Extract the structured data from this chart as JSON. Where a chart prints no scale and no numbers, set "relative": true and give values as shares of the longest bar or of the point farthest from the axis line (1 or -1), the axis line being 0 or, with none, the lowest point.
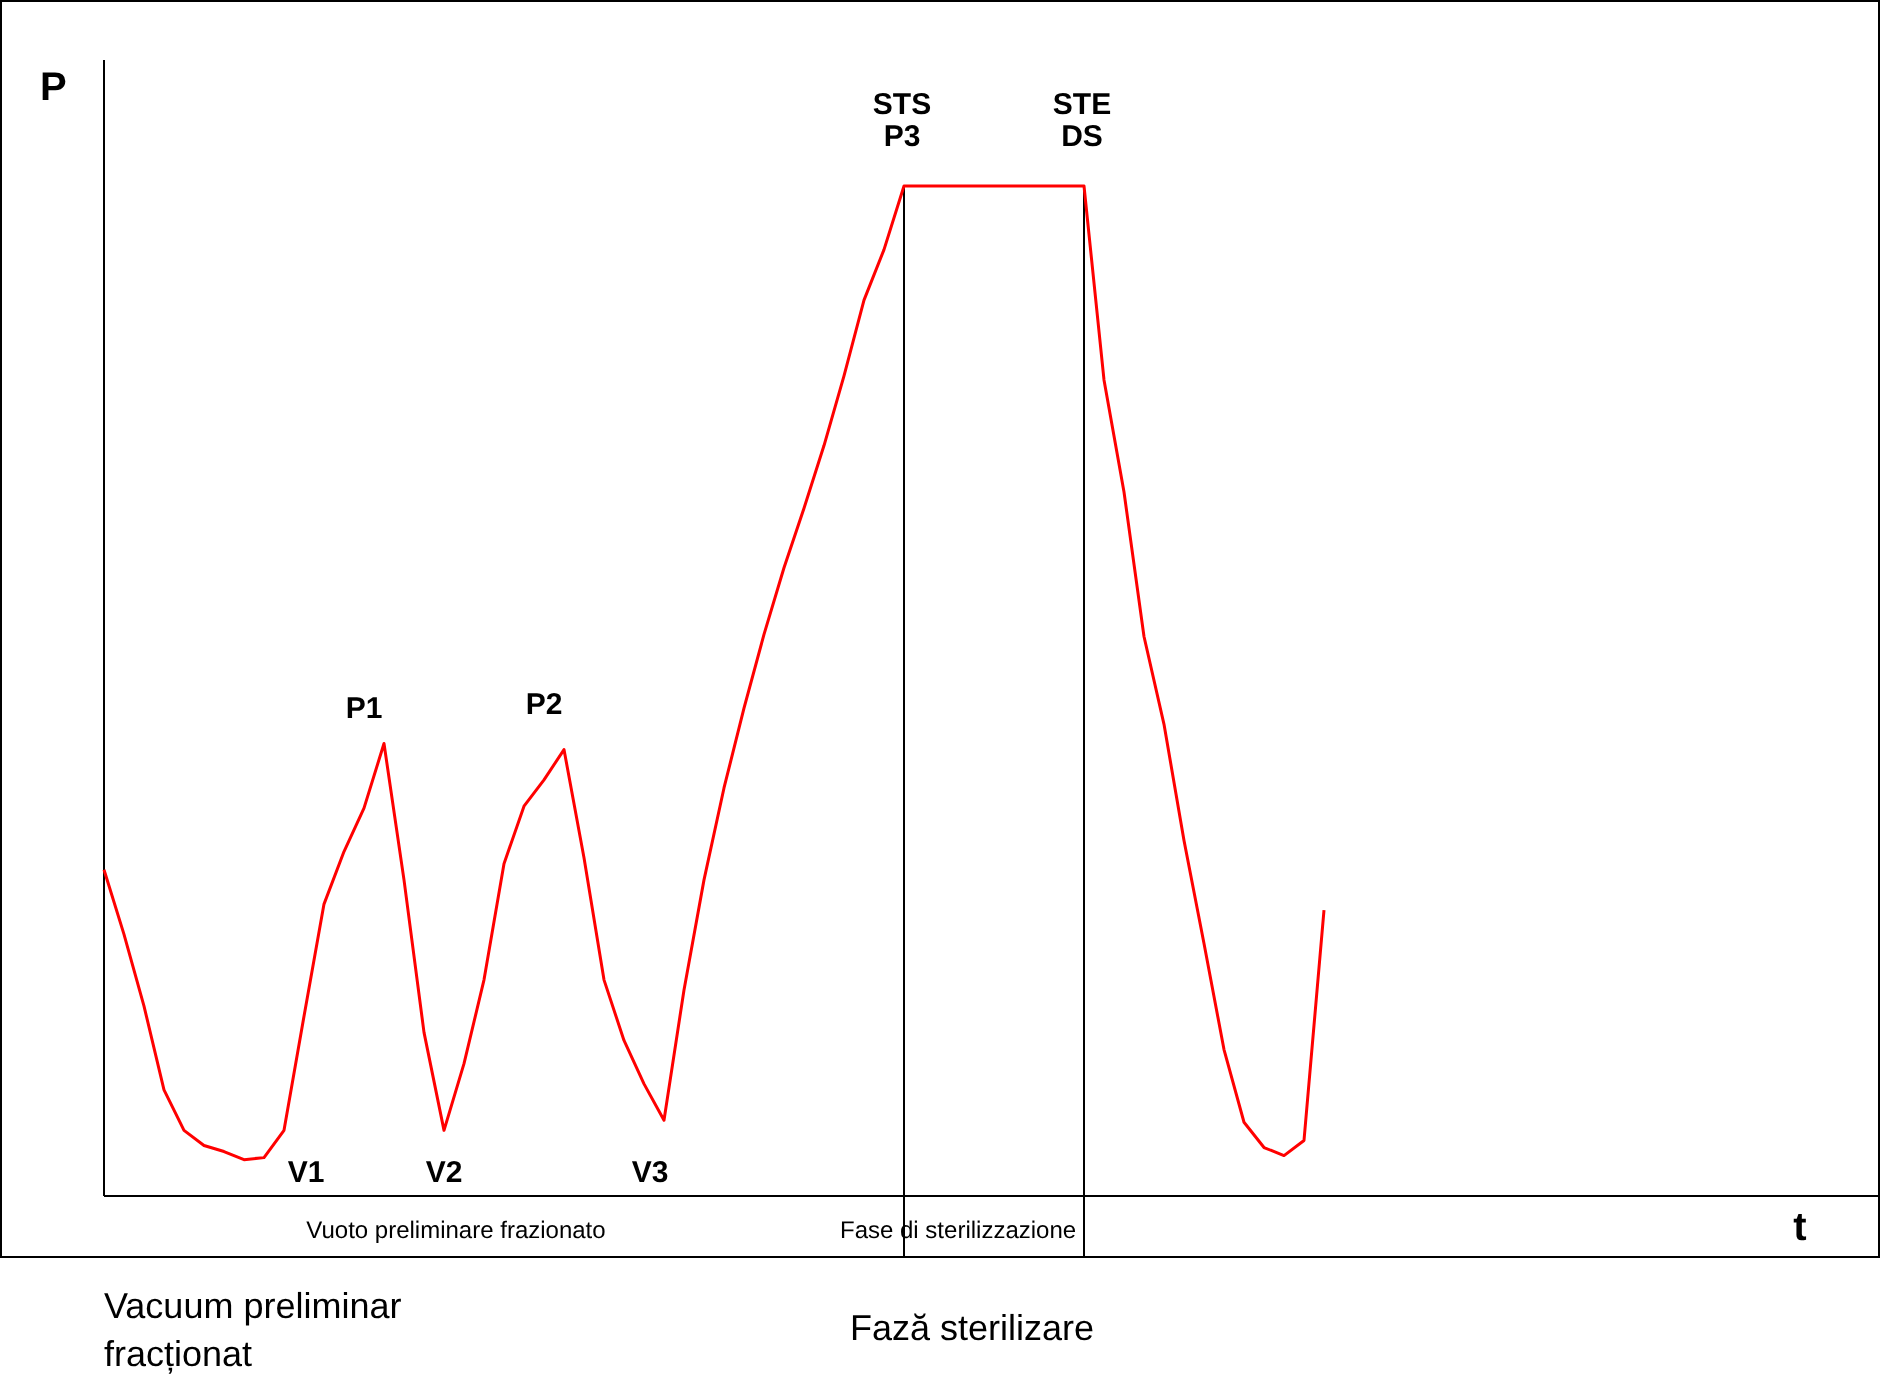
{
  "chart_data": {
    "type": "line",
    "relative": true,
    "xlabel": "t",
    "ylabel": "P",
    "categories": [
      null,
      null,
      null,
      null,
      null,
      null,
      null,
      null,
      null,
      null,
      null,
      null,
      null,
      null,
      null,
      null,
      null,
      null,
      null,
      null,
      null,
      null,
      null,
      null,
      null,
      null,
      null,
      null,
      null,
      null,
      null,
      null,
      null,
      null,
      null,
      null,
      null,
      null,
      null,
      null,
      null,
      null,
      null,
      null,
      null,
      null,
      null,
      null,
      null,
      null,
      null,
      null,
      null,
      null,
      null,
      null,
      null,
      null,
      null,
      null,
      null,
      null,
      null,
      null,
      null,
      null,
      null,
      null,
      null,
      null,
      null,
      null,
      null,
      null,
      null,
      null,
      null,
      null,
      null,
      null,
      null,
      null,
      null,
      null,
      null,
      null,
      null,
      null,
      null
    ],
    "series": [
      {
        "color": "#ff0000",
        "values": [
          0.323,
          0.259,
          0.188,
          0.105,
          0.065,
          0.05,
          0.044,
          0.036,
          0.038,
          0.065,
          0.178,
          0.289,
          0.341,
          0.384,
          0.448,
          0.313,
          0.162,
          0.065,
          0.131,
          0.214,
          0.329,
          0.386,
          0.412,
          0.442,
          0.335,
          0.214,
          0.154,
          0.111,
          0.075,
          0.204,
          0.313,
          0.404,
          0.483,
          0.556,
          0.622,
          0.681,
          0.743,
          0.812,
          0.887,
          0.937,
          1,
          1,
          1,
          1,
          1,
          1,
          1,
          1,
          1,
          1,
          0.808,
          0.697,
          0.554,
          0.467,
          0.352,
          0.25,
          0.145,
          0.073,
          0.048,
          0.04,
          0.055,
          0.283,
          null,
          null,
          null,
          null,
          null,
          null,
          null,
          null,
          null,
          null,
          null,
          null,
          null,
          null,
          null,
          null,
          null,
          null,
          null,
          null,
          null,
          null,
          null,
          null,
          null,
          null,
          null
        ]
      }
    ],
    "annotations": [
      "P1",
      "P2",
      "V1",
      "V2",
      "V3",
      "STS\nP3",
      "STE\nDS",
      "Vuoto preliminare frazionato",
      "Fase di sterilizzazione",
      "Vacuum preliminar\nfracționat",
      "Fază sterilizare"
    ],
    "marker": "none",
    "line_style": "solid"
  }
}
